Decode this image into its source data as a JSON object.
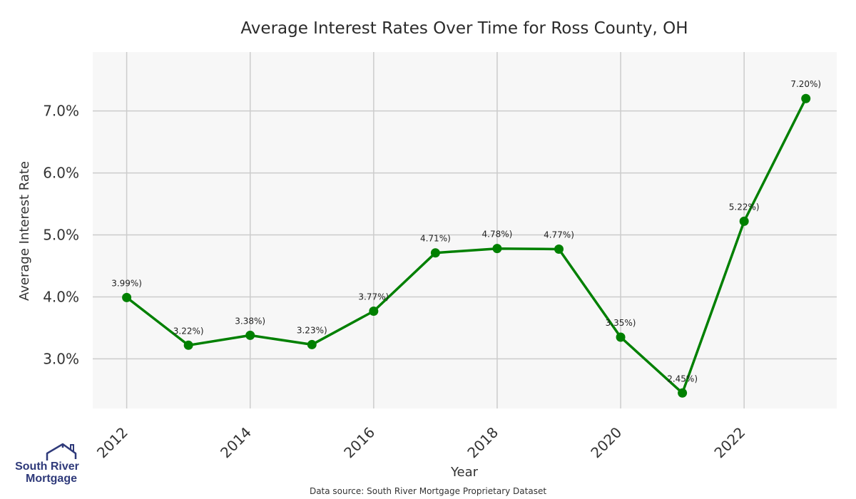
{
  "chart_data": {
    "type": "line",
    "title": "Average Interest Rates Over Time for Ross County, OH",
    "xlabel": "Year",
    "ylabel": "Average Interest Rate",
    "x": [
      2012,
      2013,
      2014,
      2015,
      2016,
      2017,
      2018,
      2019,
      2020,
      2021,
      2022,
      2023
    ],
    "values": [
      3.99,
      3.22,
      3.38,
      3.23,
      3.77,
      4.71,
      4.78,
      4.77,
      3.35,
      2.45,
      5.22,
      7.2
    ],
    "point_labels": [
      "3.99%)",
      "3.22%)",
      "3.38%)",
      "3.23%)",
      "3.77%)",
      "4.71%)",
      "4.78%)",
      "4.77%)",
      "3.35%)",
      "2.45%)",
      "5.22%)",
      "7.20%)"
    ],
    "x_ticks": [
      2012,
      2014,
      2016,
      2018,
      2020,
      2022
    ],
    "x_tick_labels": [
      "2012",
      "2014",
      "2016",
      "2018",
      "2020",
      "2022"
    ],
    "y_ticks": [
      3.0,
      4.0,
      5.0,
      6.0,
      7.0
    ],
    "y_tick_labels": [
      "3.0%",
      "4.0%",
      "5.0%",
      "6.0%",
      "7.0%"
    ],
    "xlim": [
      2011.45,
      2023.5
    ],
    "ylim": [
      2.2,
      7.95
    ],
    "grid": true,
    "line_color": "#008000",
    "plot_background": "#f7f7f7",
    "grid_color": "#cccccc"
  },
  "footer": {
    "source": "Data source: South River Mortgage Proprietary Dataset"
  },
  "logo": {
    "line1": "South River",
    "line2": "Mortgage",
    "color": "#2f3a7a"
  }
}
